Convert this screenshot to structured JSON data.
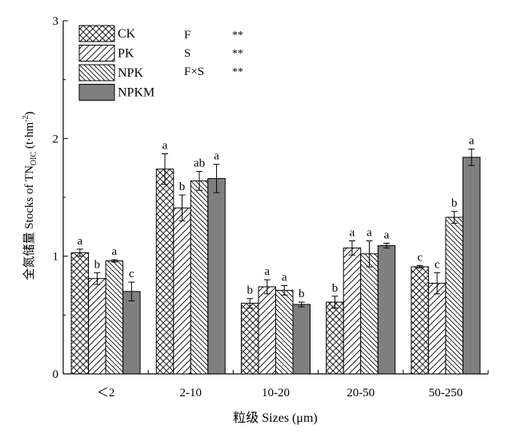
{
  "chart_data": {
    "type": "bar",
    "title": "",
    "xlabel": "粒级 Sizes (μm)",
    "ylabel": {
      "prefix": "全氮储量 Stocks of TN",
      "subscript": "OIC",
      "unit_open": " (t·hm",
      "superscript": "-2",
      "unit_close": ")"
    },
    "ylim": [
      0,
      3
    ],
    "yticks": [
      "0",
      "1",
      "2",
      "3"
    ],
    "categories": [
      "＜2",
      "2-10",
      "10-20",
      "20-50",
      "50-250"
    ],
    "grid": false,
    "legend_position": "top-left",
    "series": [
      {
        "name": "CK",
        "pattern": "crosshatch",
        "values": [
          1.03,
          1.74,
          0.6,
          0.61,
          0.91
        ],
        "errors": [
          0.03,
          0.13,
          0.04,
          0.05,
          0.01
        ],
        "labels": [
          "a",
          "a",
          "b",
          "b",
          "c"
        ]
      },
      {
        "name": "PK",
        "pattern": "forward-diagonal",
        "values": [
          0.81,
          1.41,
          0.74,
          1.07,
          0.77
        ],
        "errors": [
          0.05,
          0.11,
          0.06,
          0.06,
          0.09
        ],
        "labels": [
          "b",
          "b",
          "a",
          "a",
          "c"
        ]
      },
      {
        "name": "NPK",
        "pattern": "backward-diagonal",
        "values": [
          0.96,
          1.64,
          0.71,
          1.02,
          1.33
        ],
        "errors": [
          0.01,
          0.08,
          0.04,
          0.11,
          0.05
        ],
        "labels": [
          "a",
          "ab",
          "a",
          "a",
          "b"
        ]
      },
      {
        "name": "NPKM",
        "pattern": "solid",
        "color": "#7f7f7f",
        "values": [
          0.7,
          1.66,
          0.59,
          1.09,
          1.84
        ],
        "errors": [
          0.08,
          0.12,
          0.02,
          0.02,
          0.07
        ],
        "labels": [
          "c",
          "a",
          "b",
          "a",
          "a"
        ]
      }
    ],
    "significance": [
      {
        "factor": "F",
        "mark": "**"
      },
      {
        "factor": "S",
        "mark": "**"
      },
      {
        "factor": "F×S",
        "mark": "**"
      }
    ]
  }
}
